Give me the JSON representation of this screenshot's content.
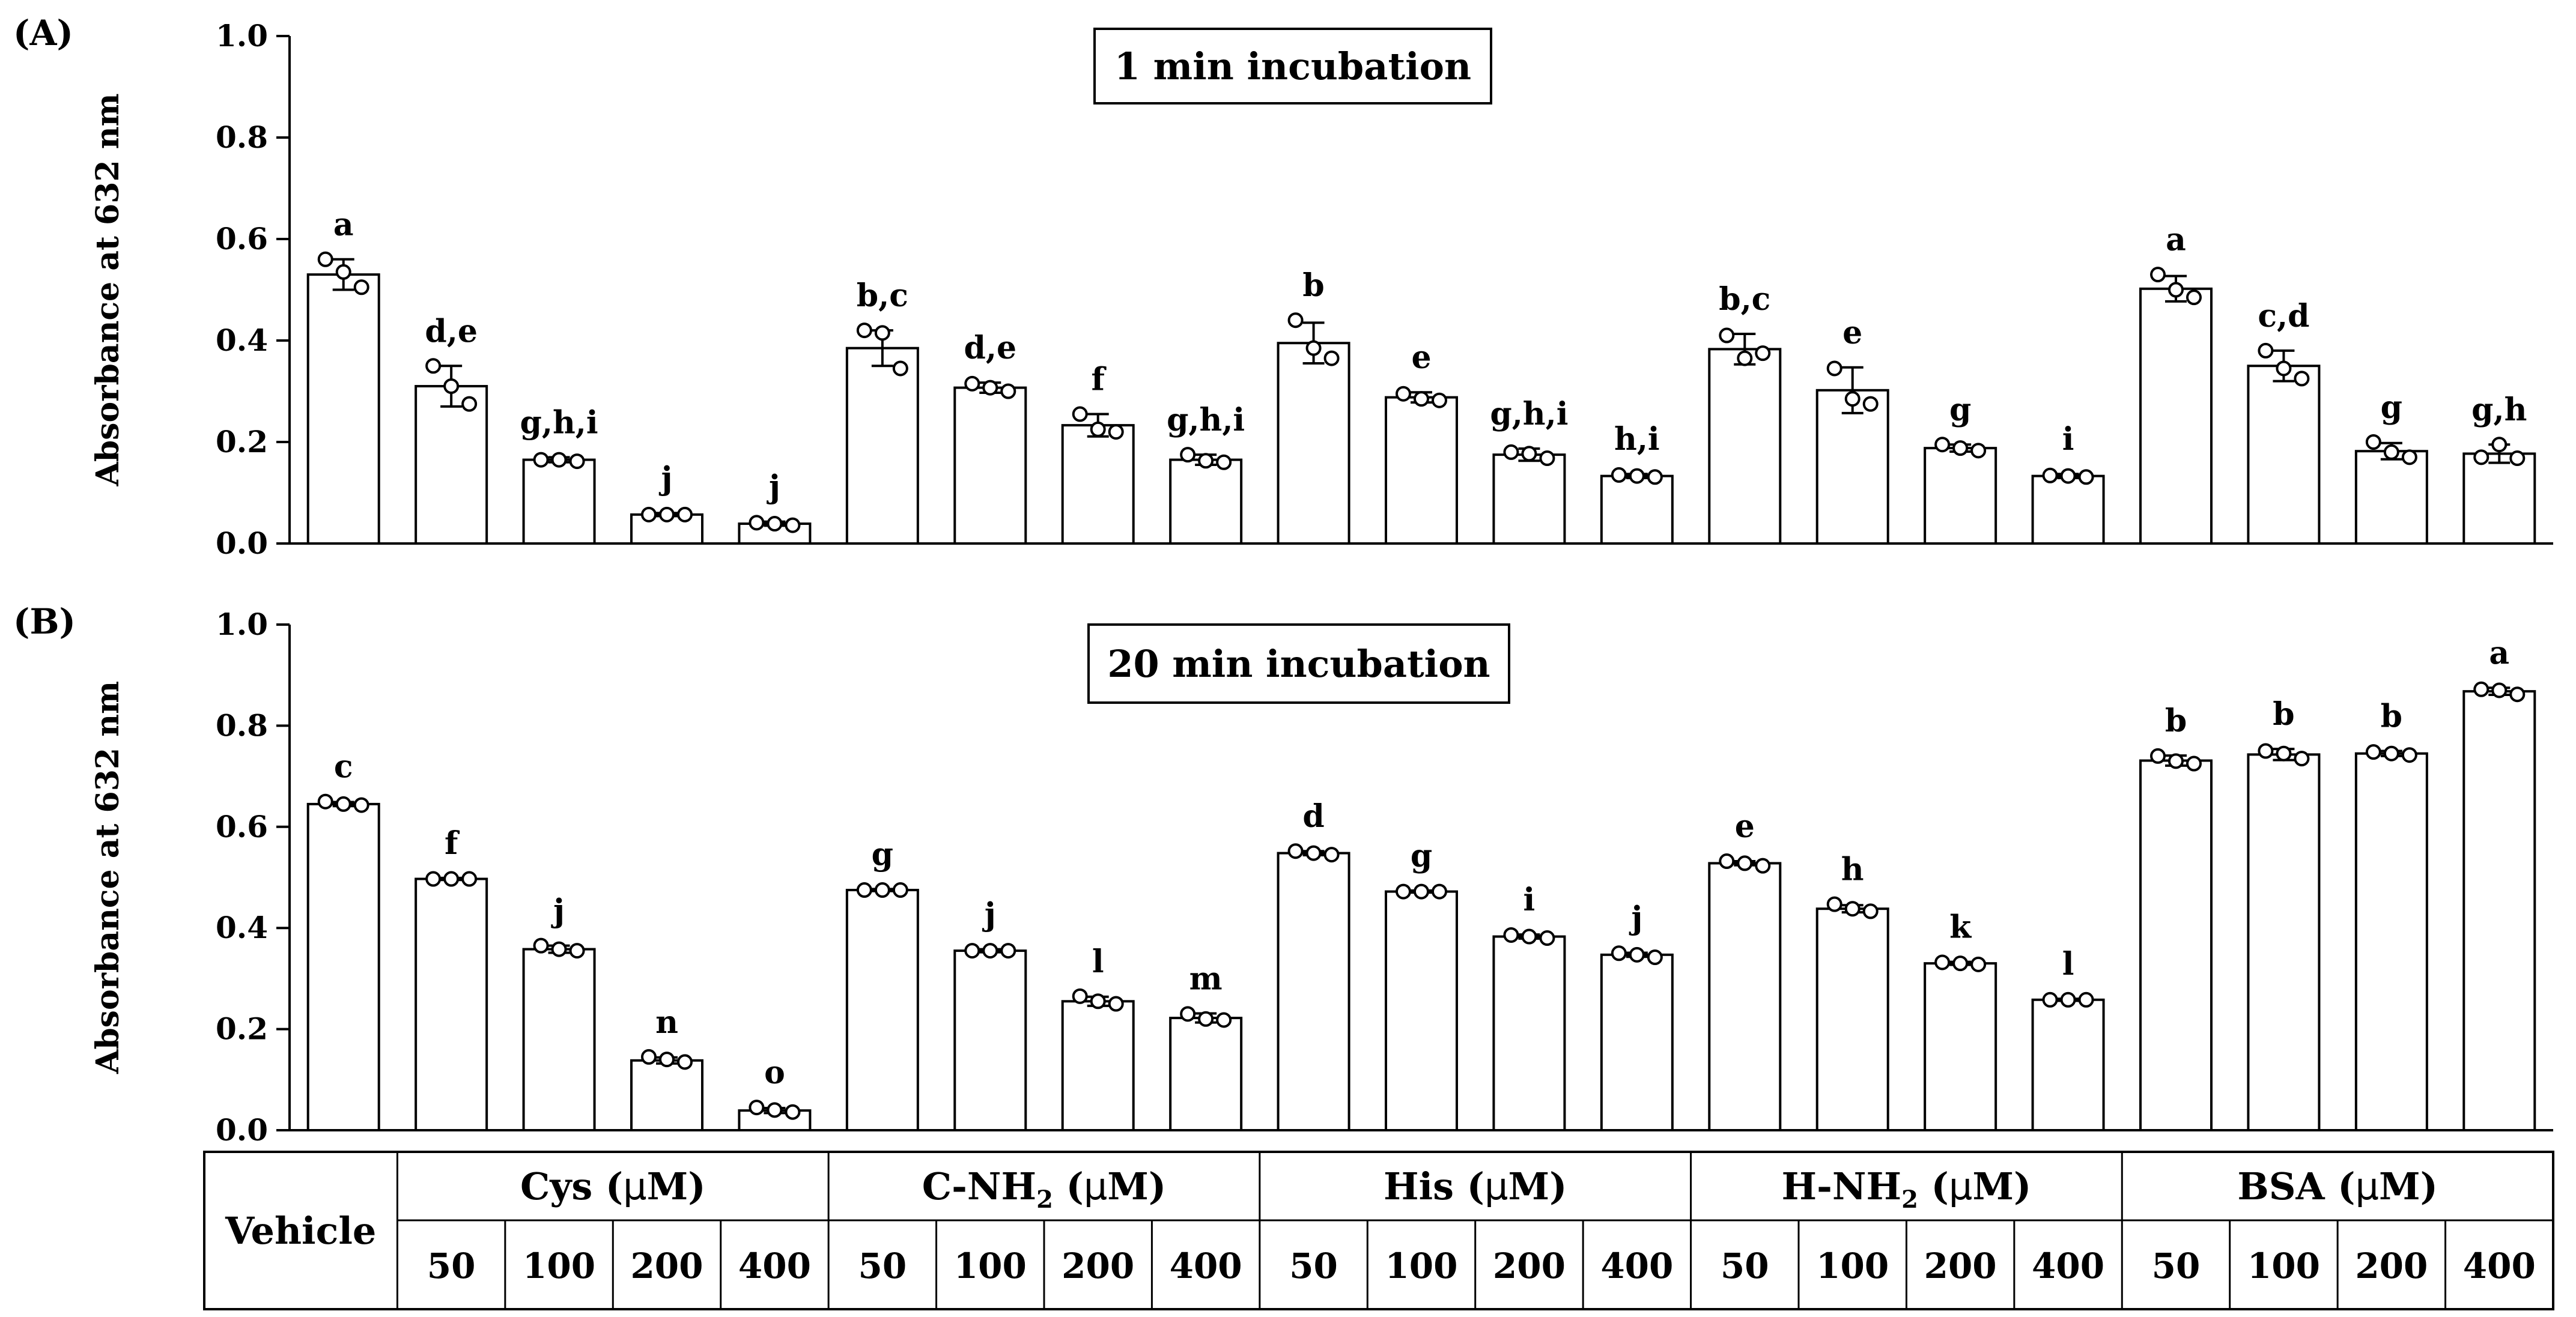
{
  "chart_data": [
    {
      "type": "bar",
      "panel_label": "(A)",
      "title": "1 min incubation",
      "ylabel": "Absorbance at 632 nm",
      "ylim": [
        0,
        1.0
      ],
      "yticks": [
        "0.0",
        "0.2",
        "0.4",
        "0.6",
        "0.8",
        "1.0"
      ],
      "categories": [
        "Vehicle",
        "Cys 50",
        "Cys 100",
        "Cys 200",
        "Cys 400",
        "C-NH2 50",
        "C-NH2 100",
        "C-NH2 200",
        "C-NH2 400",
        "His 50",
        "His 100",
        "His 200",
        "His 400",
        "H-NH2 50",
        "H-NH2 100",
        "H-NH2 200",
        "H-NH2 400",
        "BSA 50",
        "BSA 100",
        "BSA 200",
        "BSA 400"
      ],
      "values": [
        0.53,
        0.31,
        0.165,
        0.057,
        0.039,
        0.385,
        0.307,
        0.233,
        0.165,
        0.395,
        0.288,
        0.175,
        0.133,
        0.383,
        0.302,
        0.188,
        0.133,
        0.502,
        0.35,
        0.182,
        0.177
      ],
      "errors": [
        0.03,
        0.04,
        0.005,
        0.003,
        0.004,
        0.035,
        0.01,
        0.022,
        0.01,
        0.04,
        0.01,
        0.012,
        0.004,
        0.03,
        0.045,
        0.007,
        0.004,
        0.025,
        0.03,
        0.016,
        0.018
      ],
      "points": [
        [
          0.56,
          0.535,
          0.505
        ],
        [
          0.35,
          0.31,
          0.275
        ],
        [
          0.165,
          0.165,
          0.162
        ],
        [
          0.057,
          0.057,
          0.057
        ],
        [
          0.041,
          0.039,
          0.036
        ],
        [
          0.42,
          0.415,
          0.345
        ],
        [
          0.315,
          0.307,
          0.3
        ],
        [
          0.255,
          0.225,
          0.22
        ],
        [
          0.175,
          0.163,
          0.16
        ],
        [
          0.44,
          0.385,
          0.365
        ],
        [
          0.295,
          0.285,
          0.282
        ],
        [
          0.18,
          0.177,
          0.168
        ],
        [
          0.135,
          0.133,
          0.131
        ],
        [
          0.41,
          0.365,
          0.375
        ],
        [
          0.345,
          0.285,
          0.275
        ],
        [
          0.195,
          0.188,
          0.183
        ],
        [
          0.134,
          0.133,
          0.131
        ],
        [
          0.53,
          0.5,
          0.485
        ],
        [
          0.38,
          0.345,
          0.325
        ],
        [
          0.2,
          0.18,
          0.17
        ],
        [
          0.17,
          0.195,
          0.168
        ]
      ],
      "significance": [
        "a",
        "d,e",
        "g,h,i",
        "j",
        "j",
        "b,c",
        "d,e",
        "f",
        "g,h,i",
        "b",
        "e",
        "g,h,i",
        "h,i",
        "b,c",
        "e",
        "g",
        "i",
        "a",
        "c,d",
        "g",
        "g,h"
      ]
    },
    {
      "type": "bar",
      "panel_label": "(B)",
      "title": "20 min incubation",
      "ylabel": "Absorbance at 632 nm",
      "ylim": [
        0,
        1.0
      ],
      "yticks": [
        "0.0",
        "0.2",
        "0.4",
        "0.6",
        "0.8",
        "1.0"
      ],
      "categories": [
        "Vehicle",
        "Cys 50",
        "Cys 100",
        "Cys 200",
        "Cys 400",
        "C-NH2 50",
        "C-NH2 100",
        "C-NH2 200",
        "C-NH2 400",
        "His 50",
        "His 100",
        "His 200",
        "His 400",
        "H-NH2 50",
        "H-NH2 100",
        "H-NH2 200",
        "H-NH2 400",
        "BSA 50",
        "BSA 100",
        "BSA 200",
        "BSA 400"
      ],
      "values": [
        0.645,
        0.497,
        0.358,
        0.138,
        0.039,
        0.475,
        0.355,
        0.255,
        0.222,
        0.548,
        0.472,
        0.383,
        0.347,
        0.528,
        0.438,
        0.33,
        0.258,
        0.731,
        0.743,
        0.745,
        0.868
      ],
      "errors": [
        0.004,
        0.002,
        0.007,
        0.006,
        0.005,
        0.002,
        0.003,
        0.009,
        0.009,
        0.004,
        0.002,
        0.004,
        0.004,
        0.004,
        0.007,
        0.003,
        0.002,
        0.01,
        0.011,
        0.005,
        0.007
      ],
      "points": [
        [
          0.65,
          0.645,
          0.643
        ],
        [
          0.497,
          0.497,
          0.497
        ],
        [
          0.365,
          0.358,
          0.355
        ],
        [
          0.145,
          0.14,
          0.135
        ],
        [
          0.045,
          0.04,
          0.036
        ],
        [
          0.475,
          0.475,
          0.475
        ],
        [
          0.355,
          0.355,
          0.355
        ],
        [
          0.265,
          0.255,
          0.25
        ],
        [
          0.23,
          0.22,
          0.218
        ],
        [
          0.552,
          0.548,
          0.545
        ],
        [
          0.472,
          0.472,
          0.472
        ],
        [
          0.386,
          0.383,
          0.38
        ],
        [
          0.35,
          0.347,
          0.342
        ],
        [
          0.532,
          0.528,
          0.523
        ],
        [
          0.447,
          0.438,
          0.433
        ],
        [
          0.332,
          0.33,
          0.328
        ],
        [
          0.258,
          0.258,
          0.258
        ],
        [
          0.74,
          0.73,
          0.725
        ],
        [
          0.75,
          0.745,
          0.735
        ],
        [
          0.748,
          0.745,
          0.742
        ],
        [
          0.872,
          0.87,
          0.862
        ]
      ],
      "significance": [
        "c",
        "f",
        "j",
        "n",
        "o",
        "g",
        "j",
        "l",
        "m",
        "d",
        "g",
        "i",
        "j",
        "e",
        "h",
        "k",
        "l",
        "b",
        "b",
        "b",
        "a"
      ]
    }
  ],
  "xtable": {
    "vehicle_label": "Vehicle",
    "groups": [
      {
        "pre": "Cys (",
        "mu": "μ",
        "post": "M)"
      },
      {
        "pre": "C-NH",
        "sub": "2",
        "mid": " (",
        "mu": "μ",
        "post": "M)"
      },
      {
        "pre": "His (",
        "mu": "μ",
        "post": "M)"
      },
      {
        "pre": "H-NH",
        "sub": "2",
        "mid": " (",
        "mu": "μ",
        "post": "M)"
      },
      {
        "pre": "BSA (",
        "mu": "μ",
        "post": "M)"
      }
    ],
    "concentrations": [
      "50",
      "100",
      "200",
      "400"
    ]
  }
}
